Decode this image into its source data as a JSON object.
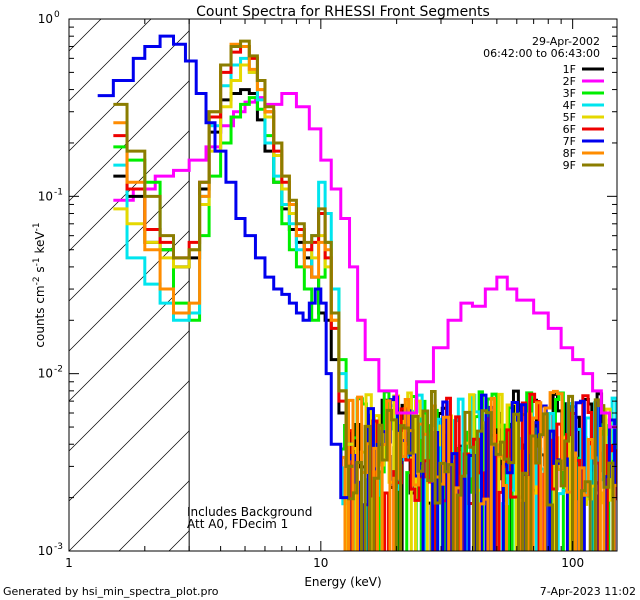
{
  "chart_data": {
    "type": "line",
    "title": "Count Spectra for RHESSI Front Segments",
    "xlabel": "Energy (keV)",
    "ylabel_parts": [
      "counts cm",
      "-2",
      " s",
      "-1",
      " keV",
      "-1"
    ],
    "x_scale": "log",
    "y_scale": "log",
    "xlim": [
      1,
      150
    ],
    "ylim": [
      0.001,
      1.0
    ],
    "x_ticks": [
      {
        "value": 1,
        "label": "1"
      },
      {
        "value": 10,
        "label": "10"
      },
      {
        "value": 100,
        "label": "100"
      }
    ],
    "y_ticks": [
      {
        "value": 0.001,
        "base": "10",
        "exp": "-3"
      },
      {
        "value": 0.01,
        "base": "10",
        "exp": "-2"
      },
      {
        "value": 0.1,
        "base": "10",
        "exp": "-1"
      },
      {
        "value": 1,
        "base": "10",
        "exp": "0"
      }
    ],
    "legend_position": "top-right",
    "date": "29-Apr-2002",
    "time_range": "06:42:00 to 06:43:00",
    "hatched_region_upper_kev": 3.0,
    "annotations": [
      "Includes Background",
      "Att A0, FDecim 1"
    ],
    "footer_left": "Generated by hsi_min_spectra_plot.pro",
    "footer_right": "7-Apr-2023 11:02",
    "series": [
      {
        "name": "1F",
        "color": "#000000",
        "energies": [
          1.5,
          1.7,
          2.0,
          2.3,
          2.6,
          3.0,
          3.3,
          3.6,
          4.0,
          4.4,
          4.8,
          5.2,
          5.6,
          6.0,
          6.5,
          7.0,
          7.5,
          8.0,
          8.6,
          9.2,
          9.8,
          10.4,
          11.0,
          11.8,
          12.6
        ],
        "values": [
          0.13,
          0.1,
          0.055,
          0.05,
          0.04,
          0.045,
          0.11,
          0.23,
          0.35,
          0.38,
          0.4,
          0.38,
          0.27,
          0.18,
          0.12,
          0.085,
          0.065,
          0.055,
          0.045,
          0.035,
          0.022,
          0.02,
          0.012,
          0.006,
          0.003
        ]
      },
      {
        "name": "2F",
        "color": "#ff00ff",
        "energies": [
          1.5,
          1.8,
          2.2,
          2.6,
          3.0,
          3.5,
          4.0,
          4.5,
          5.0,
          5.5,
          6.0,
          7.0,
          8.0,
          9.0,
          10.0,
          11.0,
          12.0,
          13.0,
          14.0,
          15.0,
          17.0,
          20.0,
          24.0,
          28.0,
          32.0,
          36.0,
          40.0,
          45.0,
          50.0,
          55.0,
          60.0,
          70.0,
          80.0,
          90.0,
          100.0,
          110.0,
          120.0,
          130.0,
          140.0,
          150.0
        ],
        "values": [
          0.095,
          0.11,
          0.13,
          0.14,
          0.16,
          0.19,
          0.25,
          0.3,
          0.34,
          0.36,
          0.33,
          0.38,
          0.32,
          0.24,
          0.16,
          0.11,
          0.075,
          0.04,
          0.02,
          0.012,
          0.008,
          0.006,
          0.009,
          0.014,
          0.02,
          0.025,
          0.024,
          0.03,
          0.035,
          0.03,
          0.026,
          0.022,
          0.018,
          0.014,
          0.012,
          0.01,
          0.008,
          0.006,
          0.005,
          0.005
        ]
      },
      {
        "name": "3F",
        "color": "#00ee00",
        "energies": [
          1.5,
          1.7,
          2.0,
          2.3,
          2.6,
          3.0,
          3.3,
          3.6,
          4.0,
          4.4,
          4.8,
          5.2,
          5.6,
          6.0,
          6.5,
          7.0,
          7.5,
          8.0,
          8.6,
          9.2,
          9.8,
          10.4,
          11.0,
          11.8,
          12.6
        ],
        "values": [
          0.19,
          0.16,
          0.12,
          0.05,
          0.025,
          0.02,
          0.06,
          0.13,
          0.2,
          0.28,
          0.33,
          0.36,
          0.31,
          0.22,
          0.12,
          0.07,
          0.05,
          0.04,
          0.03,
          0.02,
          0.035,
          0.055,
          0.03,
          0.012,
          0.004
        ]
      },
      {
        "name": "4F",
        "color": "#00e5ee",
        "energies": [
          1.5,
          1.7,
          2.0,
          2.3,
          2.6,
          3.0,
          3.3,
          3.6,
          4.0,
          4.4,
          4.8,
          5.2,
          5.6,
          6.0,
          6.5,
          7.0,
          7.5,
          8.0,
          8.6,
          9.2,
          9.8,
          10.4,
          11.0,
          11.8,
          12.6
        ],
        "values": [
          0.15,
          0.045,
          0.032,
          0.025,
          0.02,
          0.022,
          0.1,
          0.25,
          0.42,
          0.55,
          0.6,
          0.5,
          0.35,
          0.2,
          0.13,
          0.09,
          0.07,
          0.05,
          0.04,
          0.06,
          0.12,
          0.08,
          0.03,
          0.01,
          0.004
        ]
      },
      {
        "name": "5F",
        "color": "#e5d800",
        "energies": [
          1.5,
          1.7,
          2.0,
          2.3,
          2.6,
          3.0,
          3.3,
          3.6,
          4.0,
          4.4,
          4.8,
          5.2,
          5.6,
          6.0,
          6.5,
          7.0,
          7.5,
          8.0,
          8.6,
          9.2,
          9.8,
          10.4,
          11.0,
          11.8,
          12.6
        ],
        "values": [
          0.085,
          0.07,
          0.055,
          0.045,
          0.04,
          0.05,
          0.09,
          0.18,
          0.32,
          0.45,
          0.55,
          0.5,
          0.4,
          0.28,
          0.17,
          0.11,
          0.08,
          0.06,
          0.05,
          0.045,
          0.06,
          0.04,
          0.02,
          0.008,
          0.004
        ]
      },
      {
        "name": "6F",
        "color": "#ee0000",
        "energies": [
          1.5,
          1.7,
          2.0,
          2.3,
          2.6,
          3.0,
          3.3,
          3.6,
          4.0,
          4.4,
          4.8,
          5.2,
          5.6,
          6.0,
          6.5,
          7.0,
          7.5,
          8.0,
          8.6,
          9.2,
          9.8,
          10.4,
          11.0,
          11.8,
          12.6
        ],
        "values": [
          0.22,
          0.11,
          0.065,
          0.055,
          0.045,
          0.055,
          0.12,
          0.28,
          0.5,
          0.65,
          0.7,
          0.6,
          0.45,
          0.3,
          0.18,
          0.12,
          0.09,
          0.065,
          0.05,
          0.055,
          0.08,
          0.045,
          0.018,
          0.007,
          0.003
        ]
      },
      {
        "name": "7F",
        "color": "#0000ee",
        "energies": [
          1.3,
          1.5,
          1.8,
          2.0,
          2.3,
          2.6,
          2.9,
          3.2,
          3.5,
          3.8,
          4.2,
          4.6,
          5.0,
          5.5,
          6.0,
          6.5,
          7.0,
          7.5,
          8.0,
          8.5,
          9.0,
          9.5,
          10.0,
          10.5,
          11.0,
          12.0
        ],
        "values": [
          0.37,
          0.45,
          0.6,
          0.7,
          0.8,
          0.72,
          0.58,
          0.38,
          0.26,
          0.18,
          0.12,
          0.075,
          0.06,
          0.045,
          0.035,
          0.03,
          0.028,
          0.025,
          0.022,
          0.02,
          0.025,
          0.03,
          0.025,
          0.01,
          0.004,
          0.002
        ]
      },
      {
        "name": "8F",
        "color": "#ff8c00",
        "energies": [
          1.5,
          1.7,
          2.0,
          2.3,
          2.6,
          3.0,
          3.3,
          3.6,
          4.0,
          4.4,
          4.8,
          5.2,
          5.6,
          6.0,
          6.5,
          7.0,
          7.5,
          8.0,
          8.6,
          9.2,
          9.8,
          10.4,
          11.0,
          11.8,
          12.6
        ],
        "values": [
          0.26,
          0.12,
          0.05,
          0.03,
          0.022,
          0.025,
          0.1,
          0.3,
          0.55,
          0.72,
          0.7,
          0.52,
          0.4,
          0.3,
          0.2,
          0.13,
          0.09,
          0.06,
          0.04,
          0.035,
          0.055,
          0.05,
          0.02,
          0.008,
          0.003
        ]
      },
      {
        "name": "9F",
        "color": "#8b7d00",
        "energies": [
          1.5,
          1.7,
          2.0,
          2.3,
          2.6,
          3.0,
          3.3,
          3.6,
          4.0,
          4.4,
          4.8,
          5.2,
          5.6,
          6.0,
          6.5,
          7.0,
          7.5,
          8.0,
          8.6,
          9.2,
          9.8,
          10.4,
          11.0,
          11.8,
          12.6
        ],
        "values": [
          0.33,
          0.18,
          0.1,
          0.06,
          0.045,
          0.05,
          0.12,
          0.3,
          0.55,
          0.7,
          0.75,
          0.62,
          0.45,
          0.32,
          0.2,
          0.13,
          0.095,
          0.07,
          0.055,
          0.06,
          0.085,
          0.055,
          0.022,
          0.008,
          0.003
        ]
      }
    ]
  }
}
